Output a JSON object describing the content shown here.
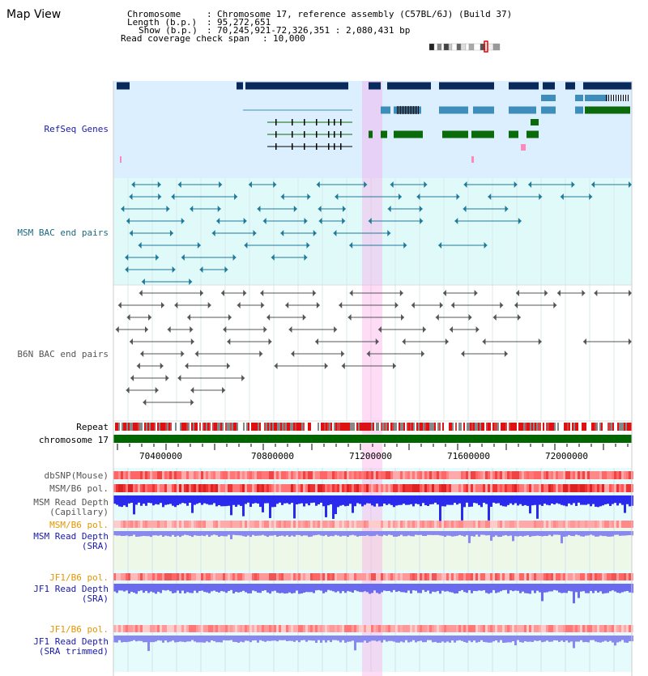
{
  "page": {
    "title": "Map View"
  },
  "header": {
    "chromosome_label": "Chromosome",
    "chromosome_value": "Chromosome 17, reference assembly (C57BL/6J) (Build 37)",
    "length_label": "Length (b.p.)",
    "length_value": "95,272,651",
    "show_label": "Show (b.p.)",
    "show_value": "70,245,921-72,326,351 : 2,080,431 bp",
    "coverage_label": "Read coverage check span",
    "coverage_value": "10,000"
  },
  "tracks": {
    "refseq": "RefSeq Genes",
    "msm_bac": "MSM BAC end pairs",
    "b6n_bac": "B6N BAC end pairs",
    "repeat": "Repeat",
    "chromosome": "chromosome 17",
    "dbsnp": "dbSNP(Mouse)",
    "msm_b6_pol_1": "MSM/B6 pol.",
    "msm_read_depth_cap_1": "MSM Read Depth",
    "msm_read_depth_cap_2": "(Capillary)",
    "msm_b6_pol_2": "MSM/B6 pol.",
    "msm_read_depth_sra_1": "MSM Read Depth",
    "msm_read_depth_sra_2": "(SRA)",
    "jf1_b6_pol_1": "JF1/B6 pol.",
    "jf1_read_depth_1": "JF1 Read Depth",
    "jf1_read_depth_2": "(SRA)",
    "jf1_b6_pol_2": "JF1/B6 pol.",
    "jf1_read_depth_trim_1": "JF1 Read Depth",
    "jf1_read_depth_trim_2": "(SRA trimmed)"
  },
  "axis_ticks": [
    "70400000",
    "70800000",
    "71200000",
    "71600000",
    "72000000"
  ],
  "colors": {
    "refseq_band": "#dcefff",
    "msm_band": "#e0fafa",
    "gray_band": "#ffffff",
    "highlight": "#ff9ae6",
    "gene_dark": "#0a2a5c",
    "gene_mid": "#3f8dbb",
    "gene_green": "#0b6b0b",
    "chromosome_bar": "#006600",
    "label_blue": "#1a1aaa",
    "label_teal": "#1a6a80",
    "label_gray": "#555555",
    "label_orange": "#e69500"
  }
}
